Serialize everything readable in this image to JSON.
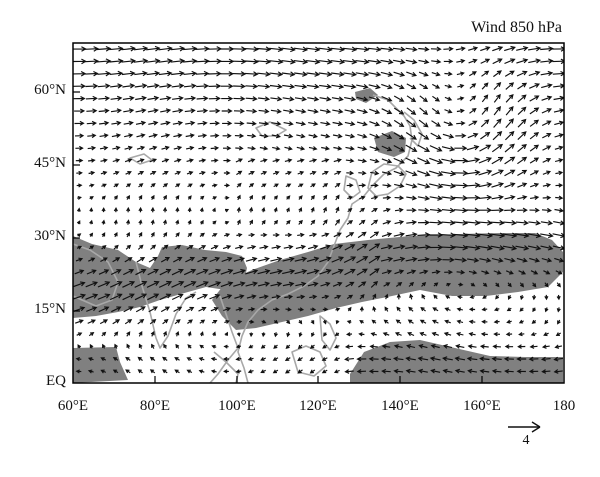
{
  "title": "Wind 850 hPa",
  "axes": {
    "lat_ticks": [
      "60°N",
      "45°N",
      "30°N",
      "15°N",
      "EQ"
    ],
    "lon_ticks": [
      "60°E",
      "80°E",
      "100°E",
      "120°E",
      "140°E",
      "160°E",
      "180"
    ],
    "lon_range": [
      60,
      180
    ],
    "lat_range": [
      0,
      70
    ]
  },
  "reference_vector": {
    "label": "4"
  },
  "colors": {
    "shading": "#808080",
    "coast": "#a8a8a8",
    "arrow": "#111111"
  }
}
